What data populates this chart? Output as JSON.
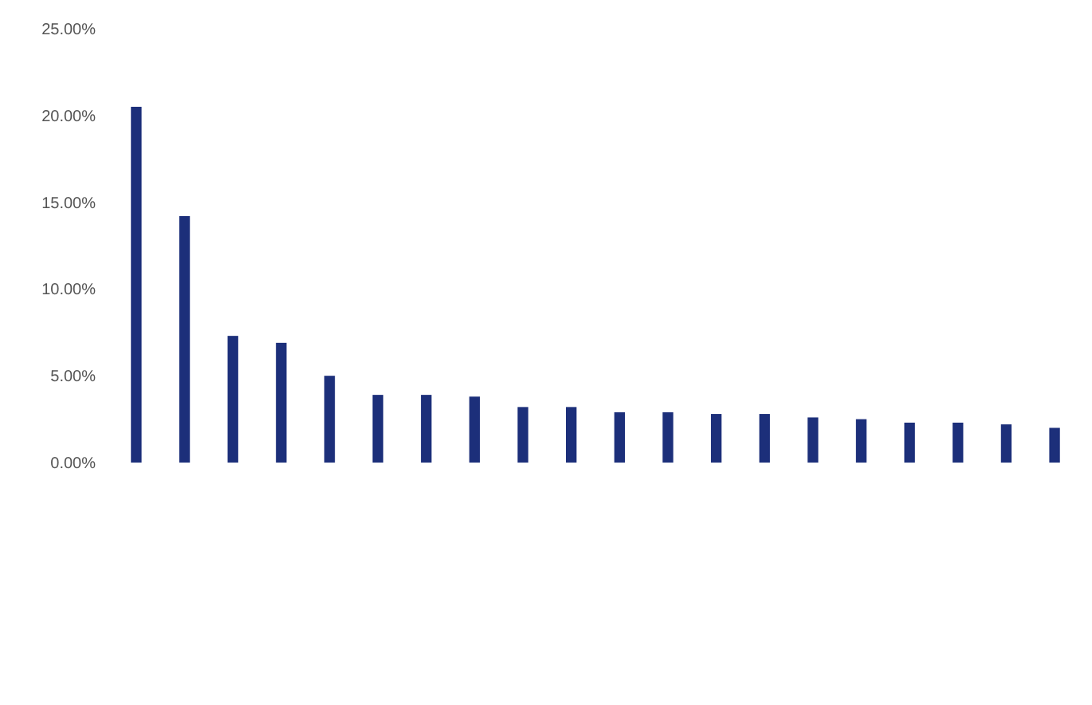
{
  "chart_data": {
    "type": "bar",
    "categories": [
      null,
      null,
      null,
      null,
      null,
      null,
      null,
      null,
      null,
      null,
      null,
      null,
      null,
      null,
      null,
      null,
      null,
      null,
      null,
      null
    ],
    "values": [
      20.5,
      14.2,
      7.3,
      6.9,
      5.0,
      3.9,
      3.9,
      3.8,
      3.2,
      3.2,
      2.9,
      2.9,
      2.8,
      2.8,
      2.6,
      2.5,
      2.3,
      2.3,
      2.2,
      2.0
    ],
    "color": "#1c2f7a",
    "ylim": [
      0,
      25
    ],
    "yticks": [
      {
        "value": 0,
        "label": "0.00%"
      },
      {
        "value": 5,
        "label": "5.00%"
      },
      {
        "value": 10,
        "label": "10.00%"
      },
      {
        "value": 15,
        "label": "15.00%"
      },
      {
        "value": 20,
        "label": "20.00%"
      },
      {
        "value": 25,
        "label": "25.00%"
      }
    ],
    "grid": false
  }
}
